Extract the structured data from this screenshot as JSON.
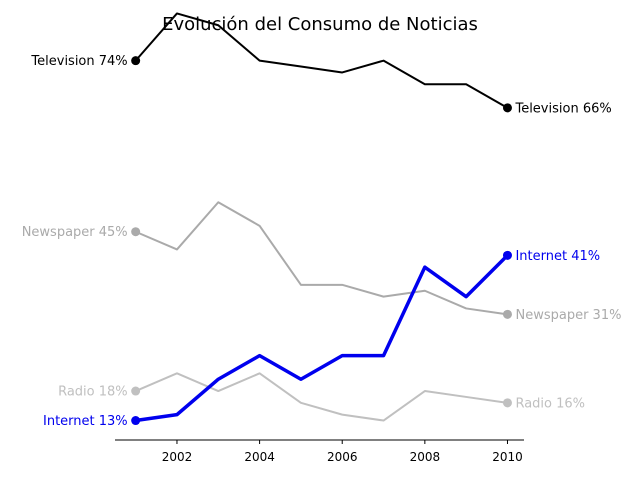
{
  "chart_data": {
    "type": "line",
    "title": "Evolución del Consumo de Noticias",
    "xlabel": "",
    "ylabel": "",
    "x": [
      2001,
      2002,
      2003,
      2004,
      2005,
      2006,
      2007,
      2008,
      2009,
      2010
    ],
    "xlim": [
      2000.5,
      2010.4
    ],
    "ylim": [
      9.7,
      77.5
    ],
    "x_ticks": [
      2002,
      2004,
      2006,
      2008,
      2010
    ],
    "grid": false,
    "y_axis_visible": false,
    "series": [
      {
        "name": "Television",
        "color": "#000000",
        "line_width": 2,
        "values": [
          74,
          82,
          80,
          74,
          73,
          72,
          74,
          70,
          70,
          66
        ],
        "start_label": "Television 74%",
        "end_label": "Television 66%"
      },
      {
        "name": "Newspaper",
        "color": "#aaaaaa",
        "line_width": 2,
        "values": [
          45,
          42,
          50,
          46,
          36,
          36,
          34,
          35,
          32,
          31
        ],
        "start_label": "Newspaper 45%",
        "end_label": "Newspaper 31%"
      },
      {
        "name": "Radio",
        "color": "#c0c0c0",
        "line_width": 2,
        "values": [
          18,
          21,
          18,
          21,
          16,
          14,
          13,
          18,
          17,
          16
        ],
        "start_label": "Radio 18%",
        "end_label": "Radio 16%"
      },
      {
        "name": "Internet",
        "color": "#0000ee",
        "line_width": 3.5,
        "values": [
          13,
          14,
          20,
          24,
          20,
          24,
          24,
          39,
          34,
          41
        ],
        "start_label": "Internet 13%",
        "end_label": "Internet 41%"
      }
    ]
  }
}
